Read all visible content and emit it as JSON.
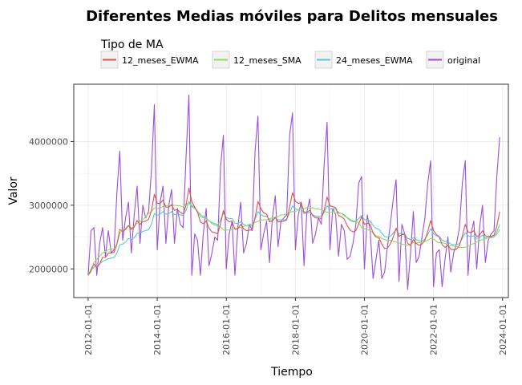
{
  "chart_data": {
    "type": "line",
    "title": "Diferentes Medias móviles para Delitos mensuales",
    "xlabel": "Tiempo",
    "ylabel": "Valor",
    "legend": {
      "title": "Tipo de MA",
      "placement": "top",
      "entries": [
        "12_meses_EWMA",
        "12_meses_SMA",
        "24_meses_EWMA",
        "original"
      ]
    },
    "x_range": [
      "2011-08-01",
      "2024-03-01"
    ],
    "xlim": [
      -5,
      146
    ],
    "ylim": [
      1550000,
      4900000
    ],
    "x_ticks": [
      {
        "label": "2012-01-01",
        "index": 0
      },
      {
        "label": "2014-01-01",
        "index": 24
      },
      {
        "label": "2016-01-01",
        "index": 48
      },
      {
        "label": "2018-01-01",
        "index": 72
      },
      {
        "label": "2020-01-01",
        "index": 96
      },
      {
        "label": "2022-01-01",
        "index": 120
      },
      {
        "label": "2024-01-01",
        "index": 144
      }
    ],
    "y_ticks": [
      {
        "label": "2000000",
        "value": 2000000
      },
      {
        "label": "3000000",
        "value": 3000000
      },
      {
        "label": "4000000",
        "value": 4000000
      }
    ],
    "grid": true,
    "x_start": "2012-01-01",
    "x_step": "1 month",
    "series": [
      {
        "name": "original",
        "color": "#9b4fd6",
        "values": [
          1900000,
          2600000,
          2650000,
          1900000,
          2400000,
          2650000,
          2200000,
          2600000,
          2250000,
          2300000,
          3200000,
          3850000,
          2450000,
          2800000,
          3050000,
          2250000,
          2850000,
          3300000,
          2400000,
          3000000,
          2800000,
          2900000,
          3550000,
          4580000,
          2300000,
          3050000,
          3300000,
          2400000,
          3000000,
          3250000,
          2400000,
          2950000,
          2700000,
          2650000,
          3750000,
          4730000,
          1900000,
          2550000,
          2450000,
          1900000,
          2550000,
          2950000,
          2050000,
          2250000,
          2500000,
          2450000,
          3600000,
          4100000,
          2000000,
          2550000,
          2750000,
          1900000,
          2650000,
          3050000,
          2250000,
          2400000,
          2700000,
          2600000,
          3850000,
          4400000,
          2300000,
          2550000,
          2750000,
          2100000,
          2800000,
          3150000,
          2350000,
          2750000,
          2800000,
          2850000,
          4100000,
          4450000,
          2300000,
          2850000,
          3050000,
          2050000,
          2900000,
          3100000,
          2400000,
          2550000,
          2800000,
          2700000,
          3650000,
          4300000,
          2300000,
          2950000,
          2850000,
          2200000,
          2700000,
          2600000,
          2150000,
          2200000,
          2400000,
          2700000,
          3350000,
          3450000,
          2000000,
          2850000,
          2600000,
          1850000,
          2150000,
          2450000,
          1850000,
          1950000,
          2350000,
          2700000,
          3100000,
          3400000,
          1800000,
          2700000,
          2550000,
          1680000,
          2250000,
          2900000,
          2100000,
          2200000,
          2500000,
          2800000,
          3350000,
          3700000,
          1720000,
          2250000,
          2300000,
          1720000,
          2150000,
          2500000,
          1950000,
          2250000,
          2400000,
          2650000,
          3350000,
          3700000,
          1900000,
          2550000,
          2750000,
          2000000,
          2650000,
          3000000,
          2100000,
          2450000,
          2550000,
          2600000,
          3450000,
          4070000
        ]
      },
      {
        "name": "24_meses_EWMA",
        "color": "#56c8d8",
        "values": [
          1920000,
          1970000,
          2030000,
          2050000,
          2080000,
          2120000,
          2140000,
          2160000,
          2170000,
          2180000,
          2250000,
          2380000,
          2390000,
          2420000,
          2480000,
          2460000,
          2490000,
          2560000,
          2560000,
          2590000,
          2600000,
          2620000,
          2700000,
          2870000,
          2840000,
          2860000,
          2900000,
          2860000,
          2870000,
          2900000,
          2850000,
          2860000,
          2850000,
          2840000,
          2920000,
          3060000,
          2980000,
          2950000,
          2910000,
          2830000,
          2800000,
          2810000,
          2750000,
          2730000,
          2710000,
          2690000,
          2770000,
          2880000,
          2810000,
          2790000,
          2790000,
          2720000,
          2710000,
          2740000,
          2700000,
          2680000,
          2690000,
          2680000,
          2780000,
          2900000,
          2850000,
          2830000,
          2830000,
          2770000,
          2770000,
          2800000,
          2770000,
          2770000,
          2770000,
          2780000,
          2880000,
          2990000,
          2940000,
          2930000,
          2940000,
          2870000,
          2870000,
          2890000,
          2850000,
          2830000,
          2830000,
          2820000,
          2890000,
          2990000,
          2940000,
          2940000,
          2940000,
          2880000,
          2870000,
          2850000,
          2800000,
          2760000,
          2740000,
          2740000,
          2790000,
          2840000,
          2770000,
          2770000,
          2750000,
          2680000,
          2640000,
          2620000,
          2560000,
          2510000,
          2500000,
          2510000,
          2560000,
          2620000,
          2550000,
          2560000,
          2550000,
          2480000,
          2460000,
          2490000,
          2460000,
          2440000,
          2440000,
          2470000,
          2540000,
          2630000,
          2550000,
          2520000,
          2510000,
          2450000,
          2430000,
          2430000,
          2390000,
          2380000,
          2380000,
          2400000,
          2480000,
          2570000,
          2520000,
          2510000,
          2520000,
          2480000,
          2490000,
          2530000,
          2490000,
          2490000,
          2490000,
          2500000,
          2580000,
          2700000
        ]
      },
      {
        "name": "12_meses_SMA",
        "color": "#8fdc5a",
        "values": [
          1900000,
          1950000,
          2100000,
          2150000,
          2200000,
          2250000,
          2270000,
          2300000,
          2310000,
          2320000,
          2390000,
          2560000,
          2610000,
          2640000,
          2670000,
          2640000,
          2670000,
          2720000,
          2740000,
          2770000,
          2820000,
          2870000,
          2900000,
          2960000,
          2950000,
          2960000,
          2980000,
          2990000,
          3000000,
          2990000,
          3000000,
          2990000,
          2990000,
          2970000,
          3020000,
          3030000,
          3000000,
          2960000,
          2900000,
          2860000,
          2820000,
          2790000,
          2760000,
          2710000,
          2690000,
          2670000,
          2660000,
          2610000,
          2610000,
          2610000,
          2630000,
          2630000,
          2640000,
          2650000,
          2670000,
          2680000,
          2700000,
          2710000,
          2730000,
          2750000,
          2770000,
          2770000,
          2770000,
          2790000,
          2800000,
          2810000,
          2820000,
          2850000,
          2850000,
          2870000,
          2890000,
          2900000,
          2900000,
          2930000,
          2950000,
          2950000,
          2960000,
          2950000,
          2960000,
          2940000,
          2940000,
          2930000,
          2900000,
          2890000,
          2890000,
          2900000,
          2880000,
          2890000,
          2870000,
          2830000,
          2810000,
          2780000,
          2750000,
          2750000,
          2720000,
          2650000,
          2630000,
          2620000,
          2600000,
          2570000,
          2520000,
          2510000,
          2480000,
          2460000,
          2450000,
          2450000,
          2430000,
          2420000,
          2410000,
          2390000,
          2380000,
          2370000,
          2380000,
          2420000,
          2410000,
          2410000,
          2420000,
          2430000,
          2450000,
          2480000,
          2470000,
          2430000,
          2410000,
          2410000,
          2400000,
          2370000,
          2360000,
          2360000,
          2350000,
          2340000,
          2340000,
          2340000,
          2360000,
          2380000,
          2400000,
          2420000,
          2440000,
          2460000,
          2470000,
          2490000,
          2500000,
          2510000,
          2540000,
          2620000
        ]
      },
      {
        "name": "12_meses_EWMA",
        "color": "#e0524a",
        "values": [
          1900000,
          1990000,
          2080000,
          2020000,
          2080000,
          2180000,
          2180000,
          2250000,
          2250000,
          2260000,
          2390000,
          2620000,
          2590000,
          2620000,
          2680000,
          2620000,
          2660000,
          2760000,
          2700000,
          2740000,
          2750000,
          2780000,
          2910000,
          3170000,
          3030000,
          3030000,
          3080000,
          2970000,
          2970000,
          3010000,
          2920000,
          2930000,
          2890000,
          2860000,
          3000000,
          3270000,
          3060000,
          2970000,
          2890000,
          2740000,
          2710000,
          2750000,
          2640000,
          2580000,
          2570000,
          2550000,
          2710000,
          2920000,
          2780000,
          2740000,
          2750000,
          2620000,
          2630000,
          2700000,
          2630000,
          2600000,
          2610000,
          2610000,
          2810000,
          3060000,
          2950000,
          2880000,
          2860000,
          2740000,
          2750000,
          2810000,
          2740000,
          2740000,
          2750000,
          2770000,
          2970000,
          3200000,
          3060000,
          3030000,
          3040000,
          2890000,
          2890000,
          2920000,
          2840000,
          2800000,
          2800000,
          2790000,
          2920000,
          3130000,
          2990000,
          2980000,
          2960000,
          2840000,
          2820000,
          2780000,
          2680000,
          2610000,
          2580000,
          2600000,
          2710000,
          2820000,
          2700000,
          2720000,
          2700000,
          2560000,
          2500000,
          2490000,
          2390000,
          2320000,
          2330000,
          2390000,
          2500000,
          2640000,
          2510000,
          2540000,
          2540000,
          2400000,
          2370000,
          2460000,
          2400000,
          2370000,
          2390000,
          2450000,
          2590000,
          2760000,
          2600000,
          2540000,
          2500000,
          2380000,
          2340000,
          2370000,
          2310000,
          2300000,
          2310000,
          2370000,
          2520000,
          2700000,
          2580000,
          2570000,
          2600000,
          2510000,
          2530000,
          2600000,
          2520000,
          2510000,
          2510000,
          2530000,
          2670000,
          2900000
        ]
      }
    ]
  }
}
